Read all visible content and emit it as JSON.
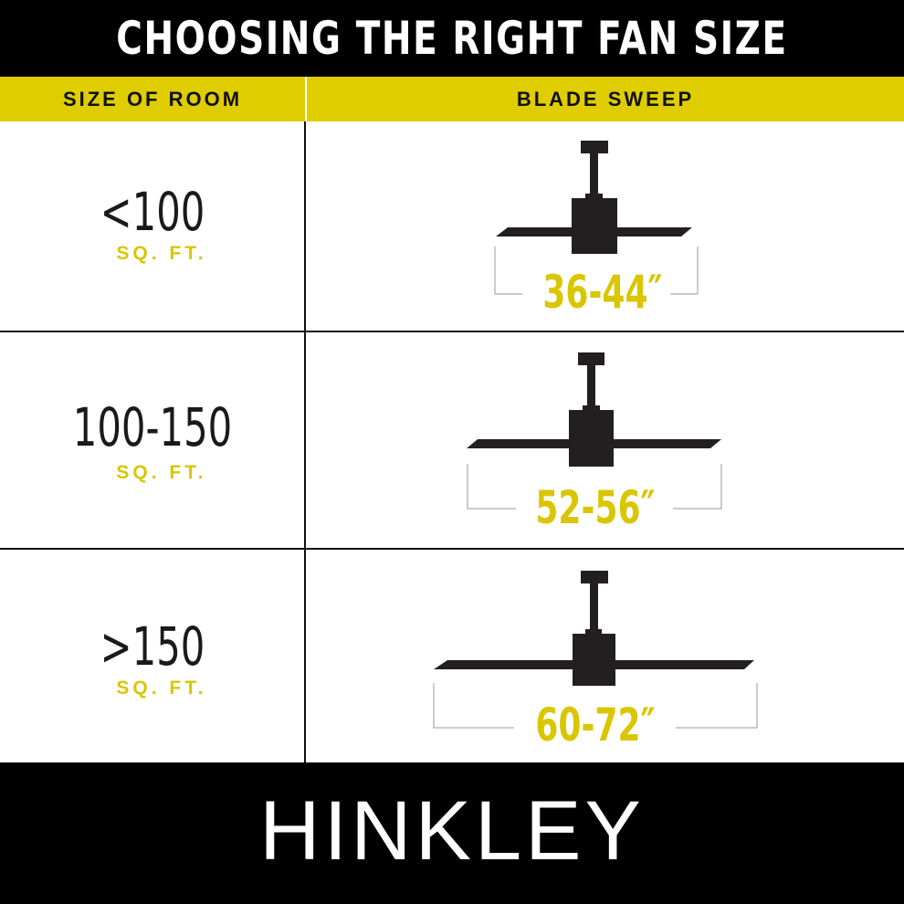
{
  "title": "CHOOSING THE RIGHT FAN SIZE",
  "columns": {
    "room": "SIZE OF ROOM",
    "sweep": "BLADE SWEEP"
  },
  "rows": [
    {
      "size": "<100",
      "unit": "SQ. FT.",
      "sweep": "36-44″"
    },
    {
      "size": "100-150",
      "unit": "SQ. FT.",
      "sweep": "52-56″"
    },
    {
      "size": ">150",
      "unit": "SQ. FT.",
      "sweep": "60-72″"
    }
  ],
  "brand": "HINKLEY",
  "colors": {
    "accent": "#e0cd00",
    "band": "#000000",
    "fan": "#231f20"
  }
}
